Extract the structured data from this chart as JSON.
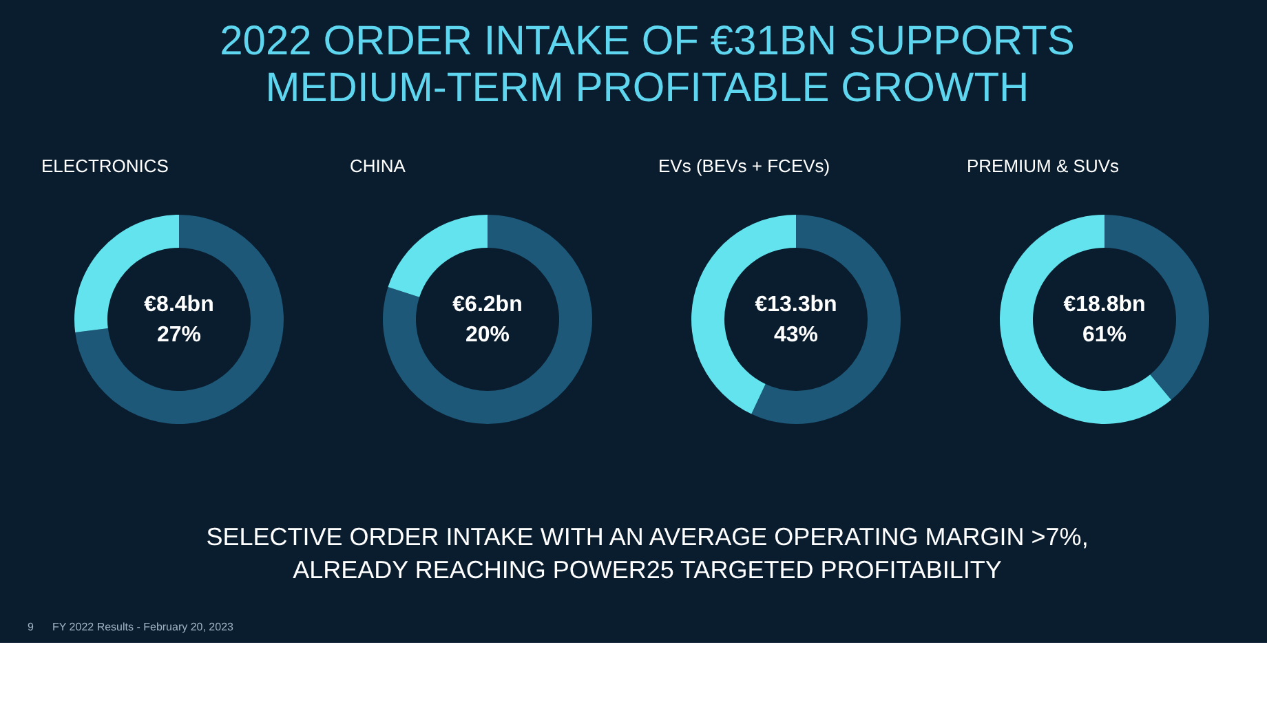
{
  "chart_data": [
    {
      "type": "other",
      "title": "2022 ORDER INTAKE OF €31BN SUPPORTS\nMEDIUM-TERM PROFITABLE GROWTH"
    },
    {
      "type": "donut",
      "title": "ELECTRONICS",
      "categories": [
        null,
        null
      ],
      "values": [
        73,
        27
      ],
      "colors": [
        "#1d5878",
        "#63e3ee"
      ],
      "annotations": [
        "€8.4bn",
        "27%"
      ]
    },
    {
      "type": "donut",
      "title": "CHINA",
      "categories": [
        null,
        null
      ],
      "values": [
        80,
        20
      ],
      "colors": [
        "#1d5878",
        "#63e3ee"
      ],
      "annotations": [
        "€6.2bn",
        "20%"
      ]
    },
    {
      "type": "donut",
      "title": "EVs (BEVs + FCEVs)",
      "categories": [
        null,
        null
      ],
      "values": [
        57,
        43
      ],
      "colors": [
        "#1d5878",
        "#63e3ee"
      ],
      "annotations": [
        "€13.3bn",
        "43%"
      ]
    },
    {
      "type": "donut",
      "title": "PREMIUM & SUVs",
      "categories": [
        null,
        null
      ],
      "values": [
        39,
        61
      ],
      "colors": [
        "#1d5878",
        "#63e3ee"
      ],
      "annotations": [
        "€18.8bn",
        "61%"
      ]
    },
    {
      "type": "other",
      "annotations": [
        "SELECTIVE ORDER INTAKE  WITH AN AVERAGE OPERATING MARGIN >7%,\nALREADY REACHING POWER25 TARGETED PROFITABILITY",
        "9",
        "FY 2022 Results - February 20, 2023"
      ]
    }
  ]
}
